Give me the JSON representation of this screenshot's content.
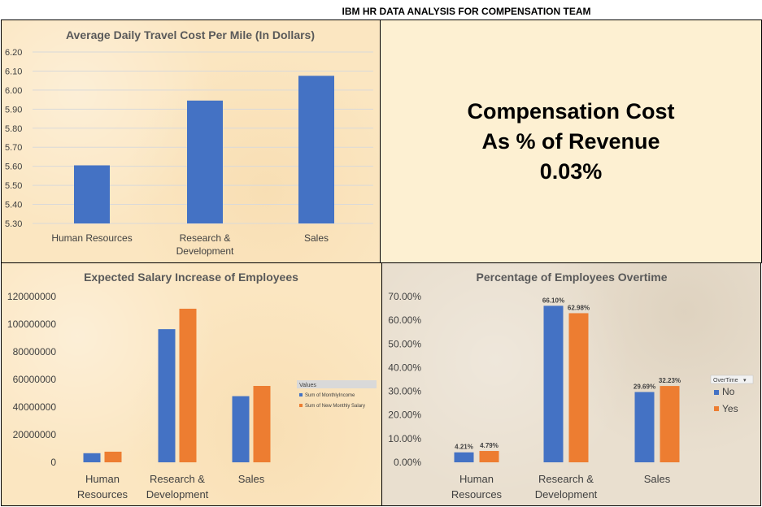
{
  "dashboard": {
    "title": "IBM HR DATA ANALYSIS FOR COMPENSATION TEAM"
  },
  "kpi": {
    "line1": "Compensation Cost",
    "line2": "As % of Revenue",
    "value": "0.03%"
  },
  "colors": {
    "blue": "#4472c4",
    "orange": "#ed7d31",
    "grid": "#d9d9d9",
    "text": "#404040"
  },
  "chart_data": [
    {
      "id": "travel",
      "type": "bar",
      "title": "Average Daily Travel Cost Per Mile (In Dollars)",
      "categories": [
        [
          "Human Resources"
        ],
        [
          "Research &",
          "Development"
        ],
        [
          "Sales"
        ]
      ],
      "series": [
        {
          "values": [
            5.605,
            5.945,
            6.075
          ],
          "color": "#4472c4"
        }
      ],
      "ylim": [
        5.3,
        6.2
      ],
      "yticks": [
        "5.30",
        "5.40",
        "5.50",
        "5.60",
        "5.70",
        "5.80",
        "5.90",
        "6.00",
        "6.10",
        "6.20"
      ],
      "grid": true
    },
    {
      "id": "salary",
      "type": "bar",
      "title": "Expected Salary Increase of Employees",
      "categories": [
        [
          "Human",
          "Resources"
        ],
        [
          "Research &",
          "Development"
        ],
        [
          "Sales"
        ]
      ],
      "series": [
        {
          "name": "Sum of MonthlyIncome",
          "values": [
            6600000,
            96400000,
            47900000
          ],
          "color": "#4472c4"
        },
        {
          "name": "Sum of New Monthly Salary",
          "values": [
            7700000,
            111200000,
            55300000
          ],
          "color": "#ed7d31"
        }
      ],
      "ylim": [
        0,
        120000000
      ],
      "yticks": [
        "0",
        "20000000",
        "40000000",
        "60000000",
        "80000000",
        "100000000",
        "120000000"
      ],
      "legend": {
        "title": "Values",
        "placement": "right"
      },
      "grid": false
    },
    {
      "id": "overtime",
      "type": "bar",
      "title": "Percentage of Employees Overtime",
      "categories": [
        [
          "Human",
          "Resources"
        ],
        [
          "Research &",
          "Development"
        ],
        [
          "Sales"
        ]
      ],
      "series": [
        {
          "name": "No",
          "values": [
            4.21,
            66.1,
            29.69
          ],
          "labels": [
            "4.21%",
            "66.10%",
            "29.69%"
          ],
          "color": "#4472c4"
        },
        {
          "name": "Yes",
          "values": [
            4.79,
            62.98,
            32.23
          ],
          "labels": [
            "4.79%",
            "62.98%",
            "32.23%"
          ],
          "color": "#ed7d31"
        }
      ],
      "ylim": [
        0,
        70
      ],
      "yticks": [
        "0.00%",
        "10.00%",
        "20.00%",
        "30.00%",
        "40.00%",
        "50.00%",
        "60.00%",
        "70.00%"
      ],
      "legend": {
        "title": "OverTime",
        "placement": "right"
      },
      "grid": false
    }
  ]
}
